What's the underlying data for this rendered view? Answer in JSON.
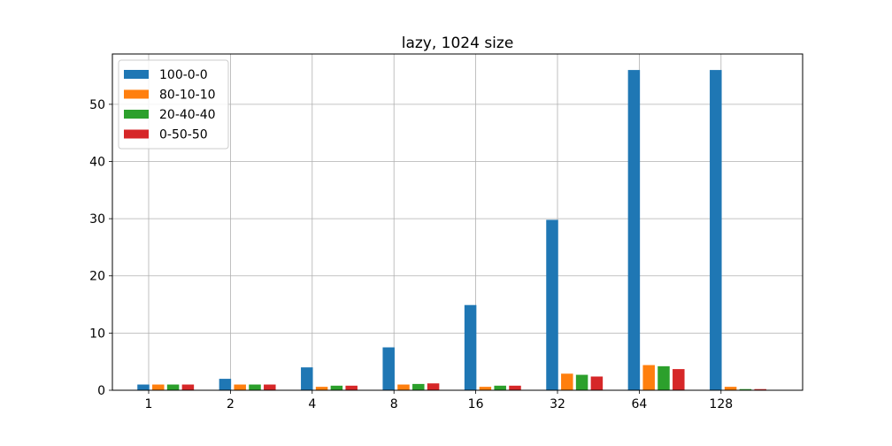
{
  "chart_data": {
    "type": "bar",
    "title": "lazy, 1024 size",
    "xlabel": "",
    "ylabel": "",
    "categories": [
      "1",
      "2",
      "4",
      "8",
      "16",
      "32",
      "64",
      "128"
    ],
    "ylim": [
      0,
      58.8
    ],
    "yticks": [
      0,
      10,
      20,
      30,
      40,
      50
    ],
    "grid": true,
    "legend_position": "top-left",
    "series": [
      {
        "name": "100-0-0",
        "color": "#1f77b4",
        "values": [
          1.0,
          2.0,
          4.0,
          7.5,
          14.9,
          29.8,
          56.0,
          56.0
        ]
      },
      {
        "name": "80-10-10",
        "color": "#ff7f0e",
        "values": [
          1.0,
          1.0,
          0.6,
          1.0,
          0.6,
          2.9,
          4.4,
          0.6
        ]
      },
      {
        "name": "20-40-40",
        "color": "#2ca02c",
        "values": [
          1.0,
          1.0,
          0.8,
          1.1,
          0.8,
          2.7,
          4.2,
          0.2
        ]
      },
      {
        "name": "0-50-50",
        "color": "#d62728",
        "values": [
          1.0,
          1.0,
          0.8,
          1.2,
          0.8,
          2.4,
          3.7,
          0.2
        ]
      }
    ]
  }
}
